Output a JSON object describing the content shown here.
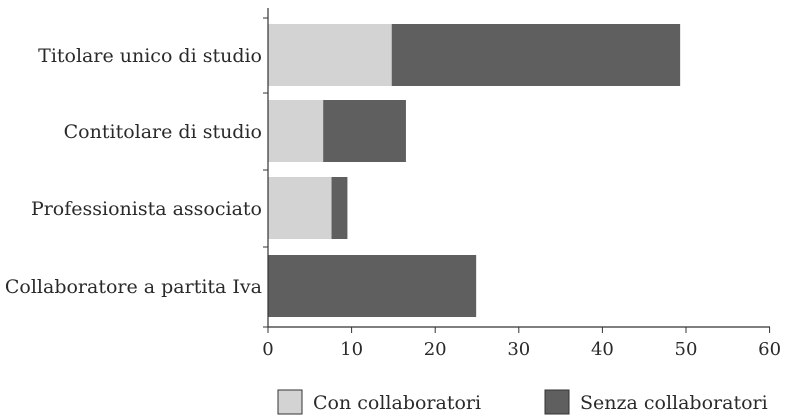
{
  "chart_data": {
    "type": "bar",
    "orientation": "horizontal",
    "stacked": true,
    "categories": [
      "Titolare unico di studio",
      "Contitolare di studio",
      "Professionista associato",
      "Collaboratore a partita Iva"
    ],
    "series": [
      {
        "name": "Con collaboratori",
        "color": "#d3d3d3",
        "values": [
          14.8,
          6.6,
          7.6,
          0
        ]
      },
      {
        "name": "Senza collaboratori",
        "color": "#5f5f5f",
        "values": [
          34.5,
          9.9,
          1.9,
          24.9
        ]
      }
    ],
    "xlim": [
      0,
      60
    ],
    "xticks": [
      "0",
      "10",
      "20",
      "30",
      "40",
      "50",
      "60"
    ],
    "grid": false,
    "legend_position": "bottom"
  }
}
